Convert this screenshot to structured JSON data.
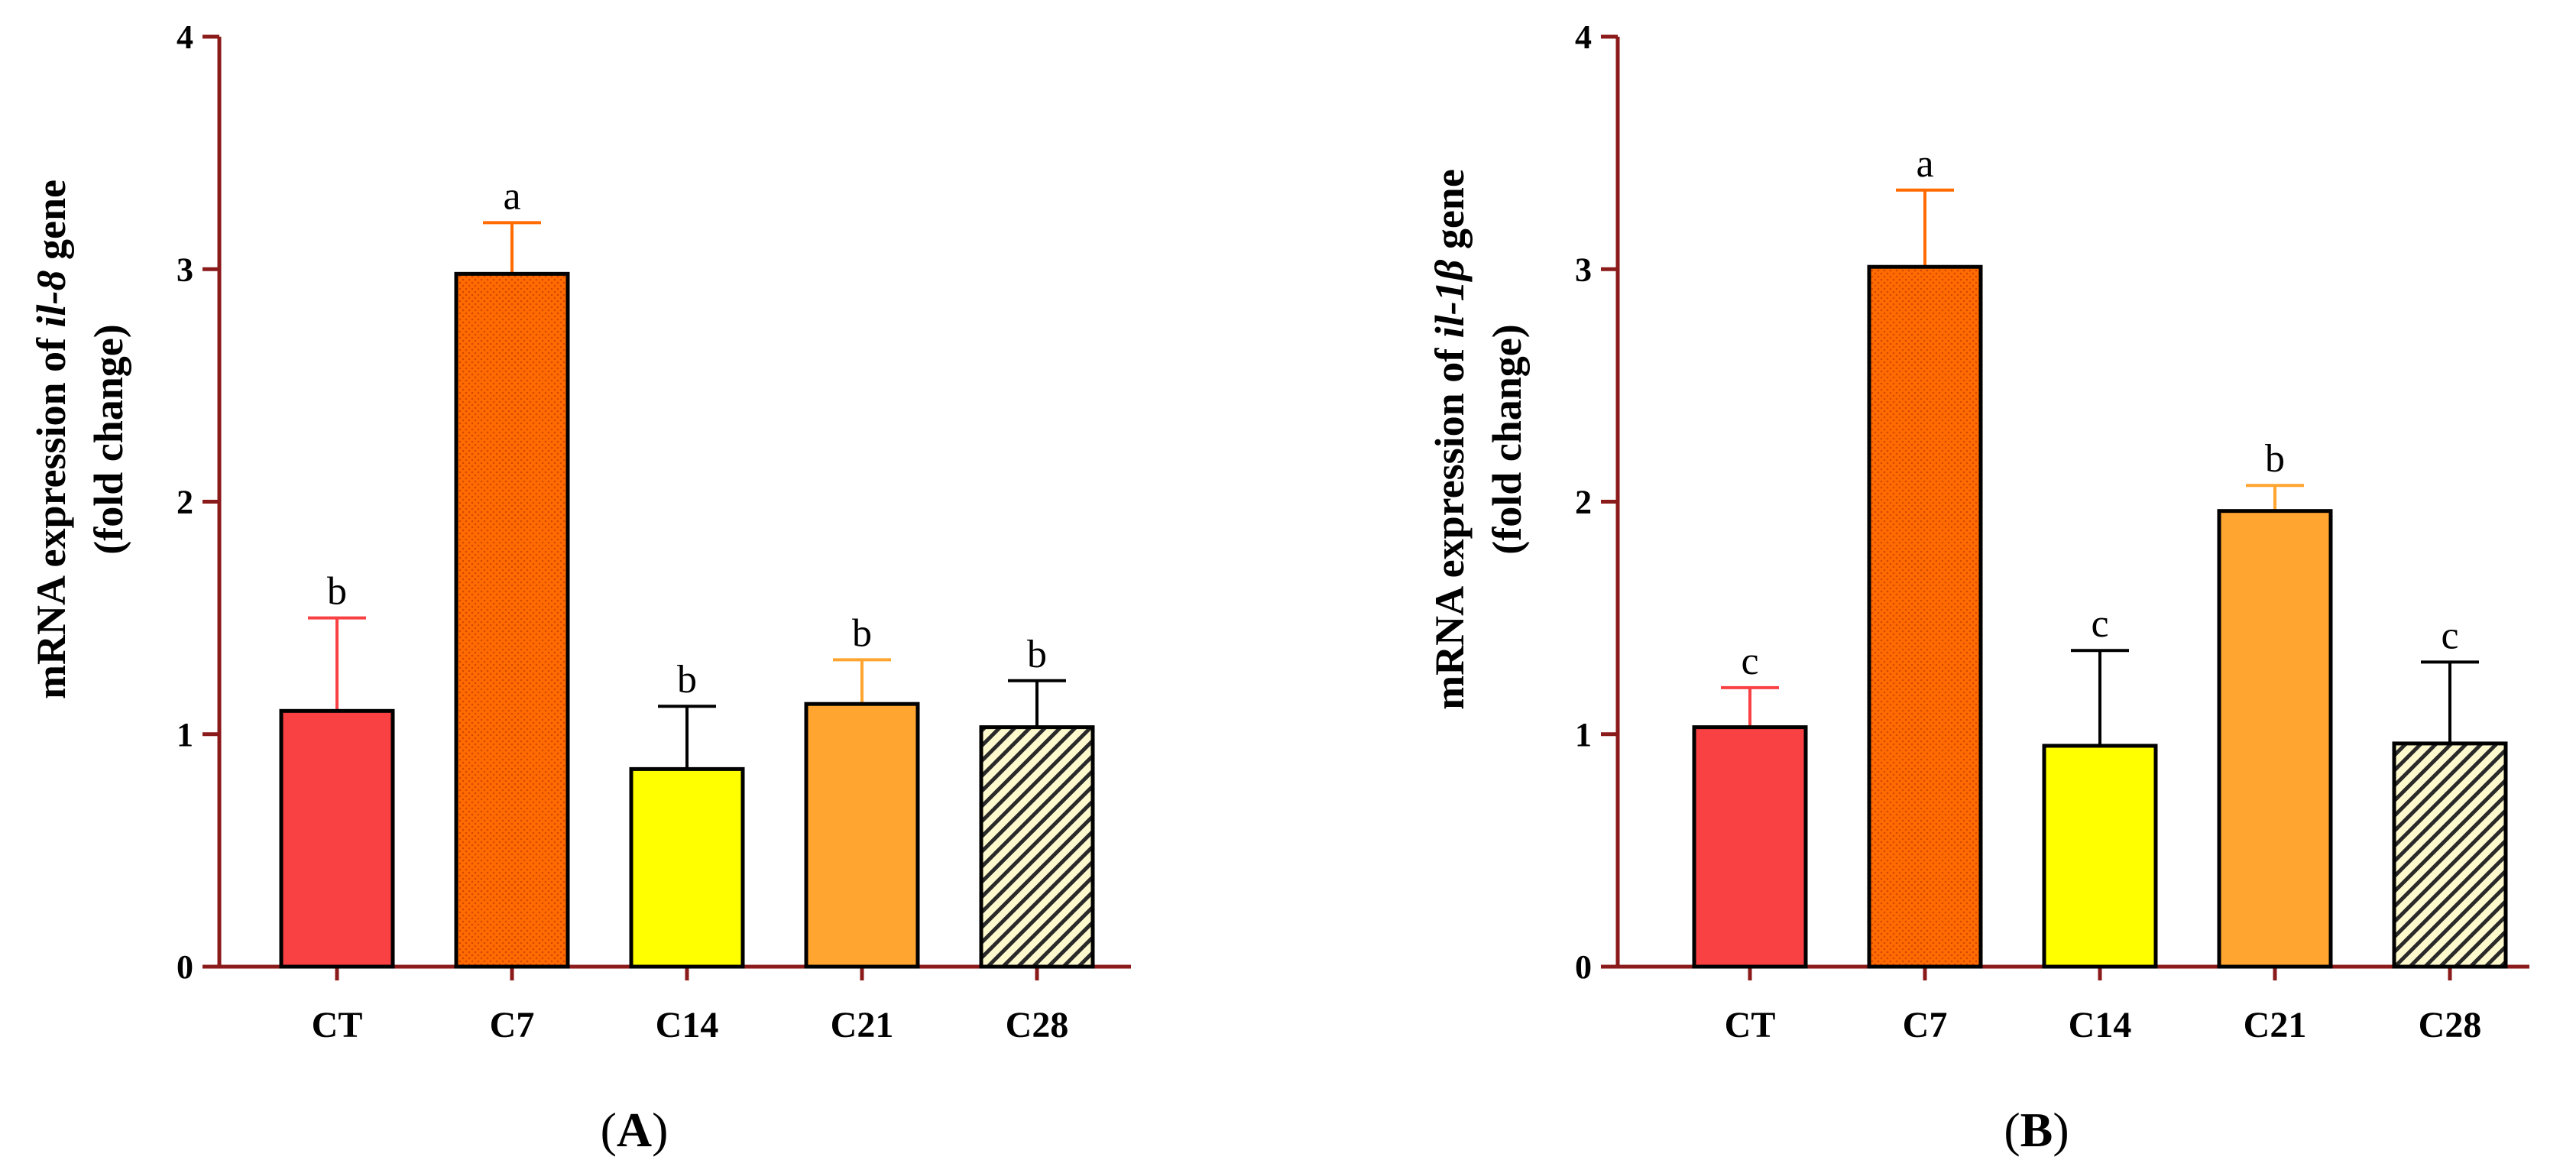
{
  "chart_data": [
    {
      "type": "bar",
      "panel_label": "A",
      "ylabel_prefix": "mRNA expression of ",
      "ylabel_gene": "il-8",
      "ylabel_suffix": " gene",
      "ylabel_line2": "(fold change)",
      "ylim": [
        0,
        4
      ],
      "yticks": [
        0,
        1,
        2,
        3,
        4
      ],
      "categories": [
        "CT",
        "C7",
        "C14",
        "C21",
        "C28"
      ],
      "values": [
        1.1,
        2.98,
        0.85,
        1.13,
        1.03
      ],
      "errors": [
        0.4,
        0.22,
        0.27,
        0.19,
        0.2
      ],
      "significance": [
        "b",
        "a",
        "b",
        "b",
        "b"
      ],
      "bar_colors": [
        "#f94144",
        "#ff6b00",
        "#ffff00",
        "#ffa530",
        "#fffacd"
      ],
      "error_colors": [
        "#f94144",
        "#ff6b00",
        "#000000",
        "#ffa530",
        "#000000"
      ],
      "bar_patterns": [
        "solid",
        "dots",
        "solid",
        "solid",
        "hatch"
      ]
    },
    {
      "type": "bar",
      "panel_label": "B",
      "ylabel_prefix": "mRNA expression of ",
      "ylabel_gene": "il-1β",
      "ylabel_suffix": " gene",
      "ylabel_line2": "(fold change)",
      "ylim": [
        0,
        4
      ],
      "yticks": [
        0,
        1,
        2,
        3,
        4
      ],
      "categories": [
        "CT",
        "C7",
        "C14",
        "C21",
        "C28"
      ],
      "values": [
        1.03,
        3.01,
        0.95,
        1.96,
        0.96
      ],
      "errors": [
        0.17,
        0.33,
        0.41,
        0.11,
        0.35
      ],
      "significance": [
        "c",
        "a",
        "c",
        "b",
        "c"
      ],
      "bar_colors": [
        "#f94144",
        "#ff6b00",
        "#ffff00",
        "#ffa530",
        "#fffacd"
      ],
      "error_colors": [
        "#f94144",
        "#ff6b00",
        "#000000",
        "#ffa530",
        "#000000"
      ],
      "bar_patterns": [
        "solid",
        "dots",
        "solid",
        "solid",
        "hatch"
      ]
    }
  ],
  "style": {
    "axis_color": "#8b1a1a",
    "bar_outline": "#000000"
  }
}
